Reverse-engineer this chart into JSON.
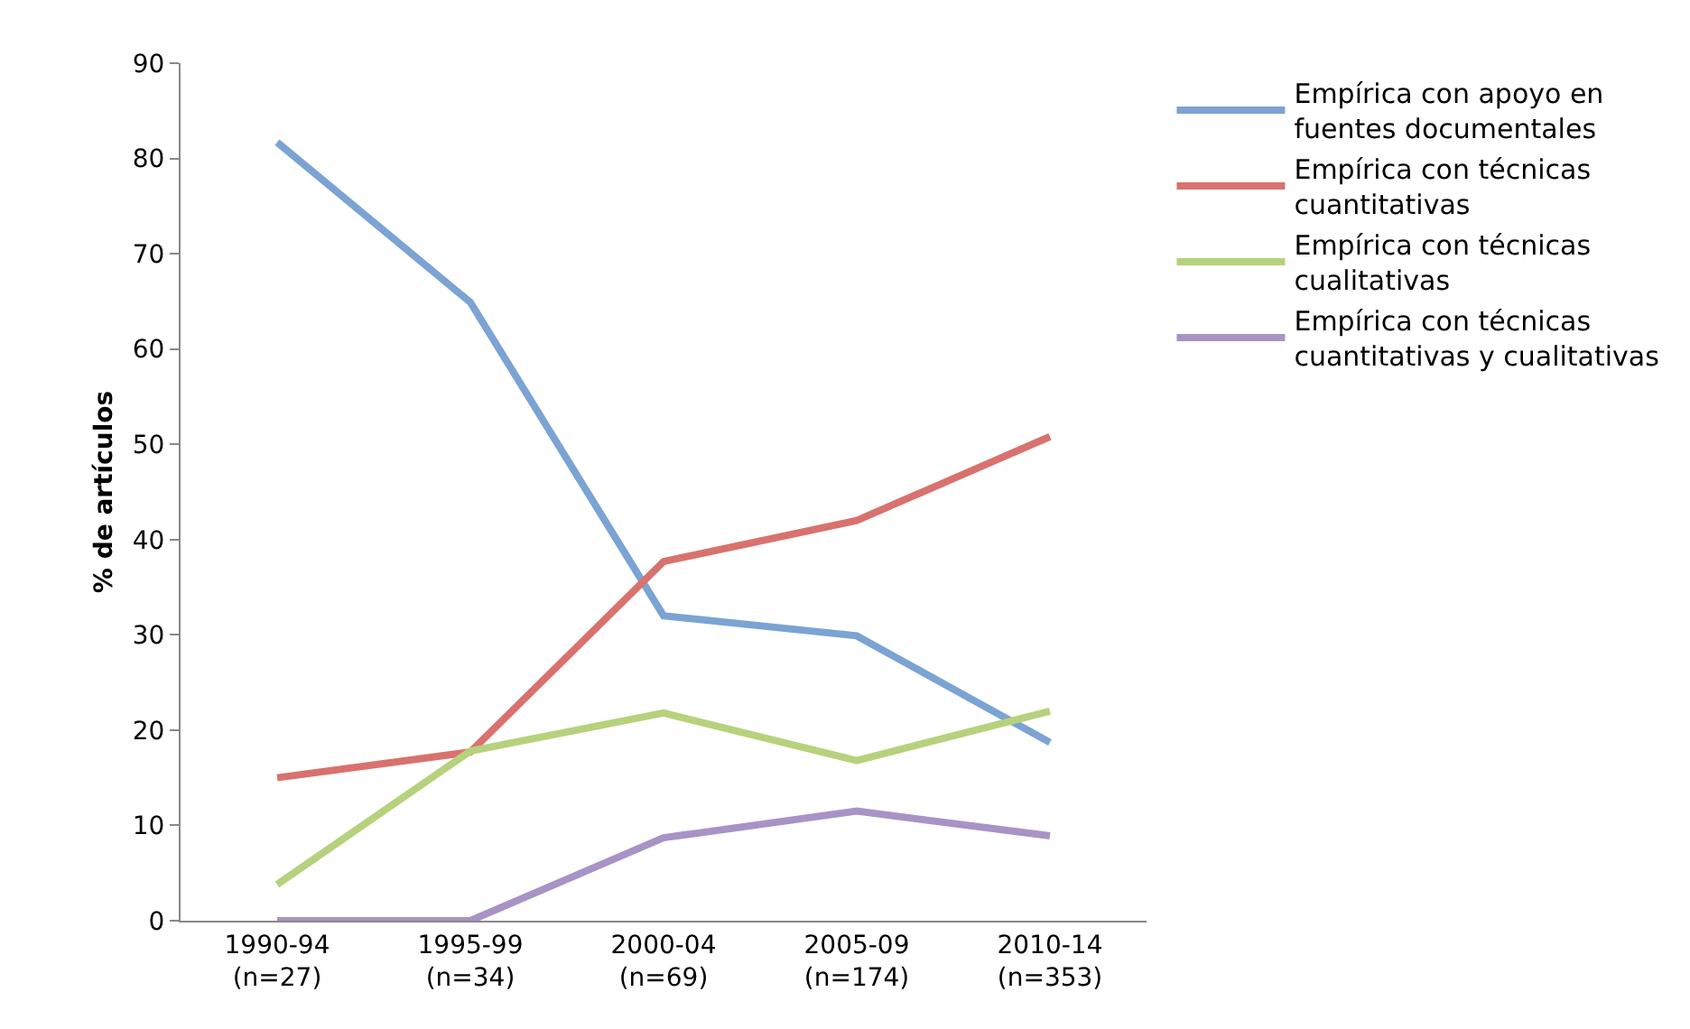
{
  "chart_data": {
    "type": "line",
    "ylabel": "% de artículos",
    "categories": [
      "1990-94 (n=27)",
      "1995-99 (n=34)",
      "2000-04 (n=69)",
      "2005-09 (n=174)",
      "2010-14 (n=353)"
    ],
    "series": [
      {
        "name": "Empírica con apoyo en fuentes documentales",
        "color": "#7ba3d3",
        "values": [
          81.7,
          64.9,
          32,
          29.9,
          18.7
        ]
      },
      {
        "name": "Empírica con técnicas cuantitativas",
        "color": "#d9726e",
        "values": [
          15,
          17.7,
          37.7,
          42,
          50.8
        ]
      },
      {
        "name": "Empírica con técnicas cualitativas",
        "color": "#b6d27c",
        "values": [
          3.8,
          17.8,
          21.8,
          16.8,
          22
        ]
      },
      {
        "name": "Empírica con técnicas cuantitativas y cualitativas",
        "color": "#a793c6",
        "values": [
          0,
          0,
          8.7,
          11.5,
          8.9
        ]
      }
    ],
    "ylim": [
      0,
      90
    ],
    "yticks": [
      0,
      10,
      20,
      30,
      40,
      50,
      60,
      70,
      80,
      90
    ],
    "grid": false,
    "legend": "right",
    "marker": "none",
    "line_style": "solid"
  }
}
